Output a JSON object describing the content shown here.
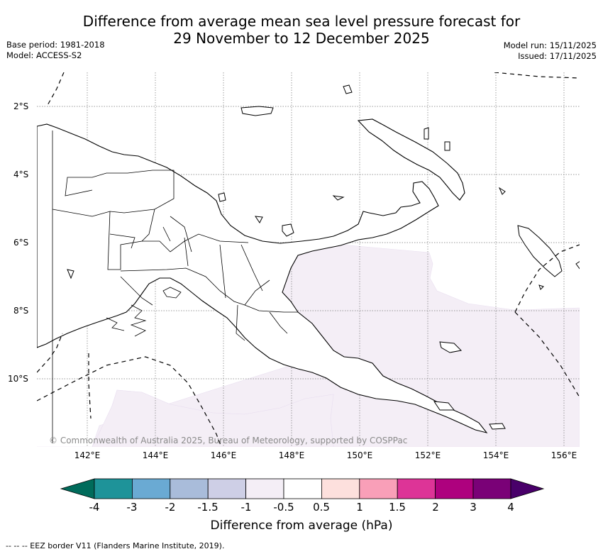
{
  "header": {
    "title_line1": "Difference from average mean sea level pressure forecast for",
    "title_line2": "29 November to 12 December 2025",
    "base_period": "Base period: 1981-2018",
    "model": "Model: ACCESS-S2",
    "model_run": "Model run: 15/11/2025",
    "issued": "Issued: 17/11/2025"
  },
  "map": {
    "lat_labels": [
      "2°S",
      "4°S",
      "6°S",
      "8°S",
      "10°S"
    ],
    "lon_labels": [
      "142°E",
      "144°E",
      "146°E",
      "148°E",
      "150°E",
      "152°E",
      "154°E",
      "156°E"
    ],
    "copyright": "© Commonwealth of Australia 2025, Bureau of Meteorology, supported by COSPPac",
    "anomaly_region_color": "#f4eef6",
    "anomaly_category": "-1 to -0.5"
  },
  "colorbar": {
    "title": "Difference from average (hPa)",
    "ticks": [
      "-4",
      "-3",
      "-2",
      "-1.5",
      "-1",
      "-0.5",
      "0.5",
      "1",
      "1.5",
      "2",
      "3",
      "4"
    ],
    "colors": [
      "#006b5b",
      "#1e9399",
      "#6aaad3",
      "#a9bcda",
      "#cecfe6",
      "#f4eef6",
      "#ffffff",
      "#fde0dd",
      "#f99fb8",
      "#dd3497",
      "#ae017e",
      "#7a0177",
      "#49006a"
    ]
  },
  "footnote": "--  --  -- EEZ border V11 (Flanders Marine Institute, 2019)."
}
